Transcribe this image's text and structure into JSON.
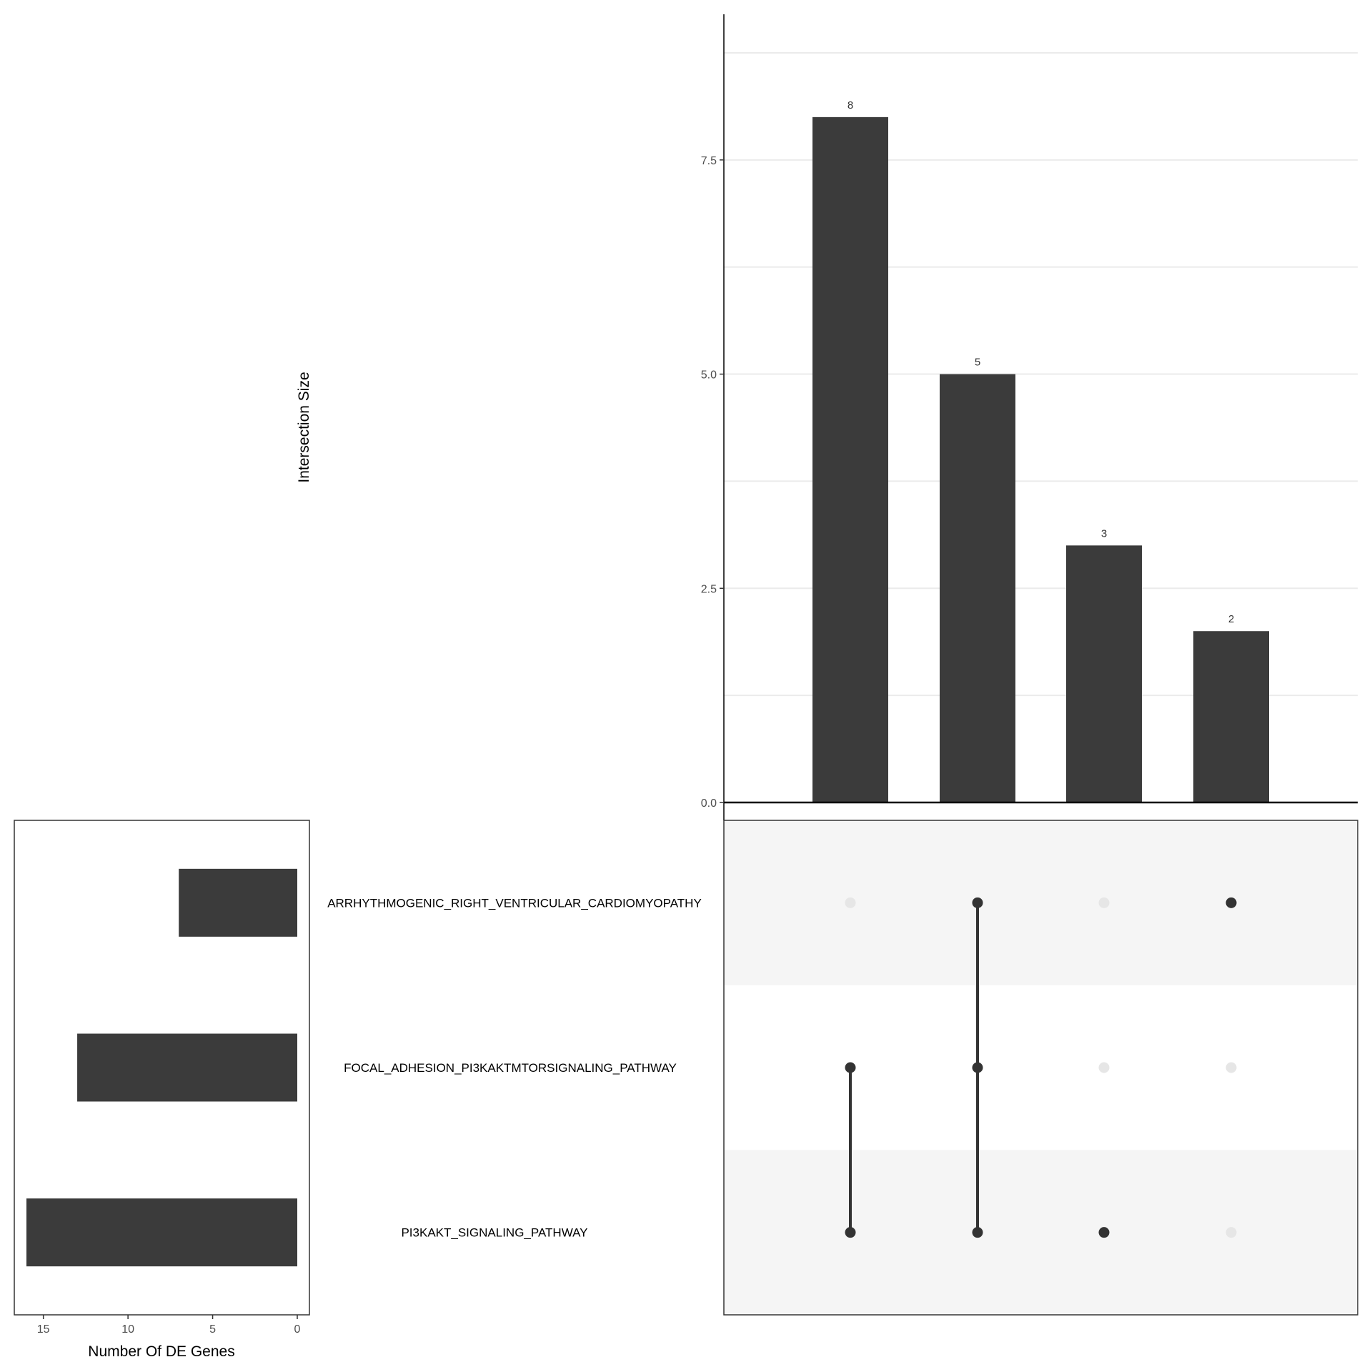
{
  "chart_data": {
    "type": "upset",
    "intersections": {
      "ylabel": "Intersection Size",
      "ylim": [
        0,
        9.2
      ],
      "yticks": [
        0,
        2.5,
        5,
        7.5
      ],
      "ytick_labels": [
        "0.0",
        "2.5",
        "5.0",
        "7.5"
      ],
      "grid": true,
      "values": [
        8,
        5,
        3,
        2
      ],
      "value_labels": [
        "8",
        "5",
        "3",
        "2"
      ],
      "memberships": [
        [
          "FOCAL_ADHESION_PI3KAKTMTORSIGNALING_PATHWAY",
          "PI3KAKT_SIGNALING_PATHWAY"
        ],
        [
          "ARRHYTHMOGENIC_RIGHT_VENTRICULAR_CARDIOMYOPATHY",
          "FOCAL_ADHESION_PI3KAKTMTORSIGNALING_PATHWAY",
          "PI3KAKT_SIGNALING_PATHWAY"
        ],
        [
          "PI3KAKT_SIGNALING_PATHWAY"
        ],
        [
          "ARRHYTHMOGENIC_RIGHT_VENTRICULAR_CARDIOMYOPATHY"
        ]
      ]
    },
    "sets": {
      "names": [
        "ARRHYTHMOGENIC_RIGHT_VENTRICULAR_CARDIOMYOPATHY",
        "FOCAL_ADHESION_PI3KAKTMTORSIGNALING_PATHWAY",
        "PI3KAKT_SIGNALING_PATHWAY"
      ],
      "sizes": [
        7,
        13,
        16
      ],
      "xlabel": "Number Of DE Genes",
      "xlim": [
        0,
        16.6
      ],
      "xticks": [
        15,
        10,
        5,
        0
      ],
      "xtick_labels": [
        "15",
        "10",
        "5",
        "0"
      ],
      "reversed": true
    },
    "colors": {
      "bar": "#3b3b3b",
      "dot_active": "#333333",
      "dot_inactive": "#e6e6e6",
      "stripe": "#f5f5f5",
      "grid": "#ebebeb"
    }
  }
}
